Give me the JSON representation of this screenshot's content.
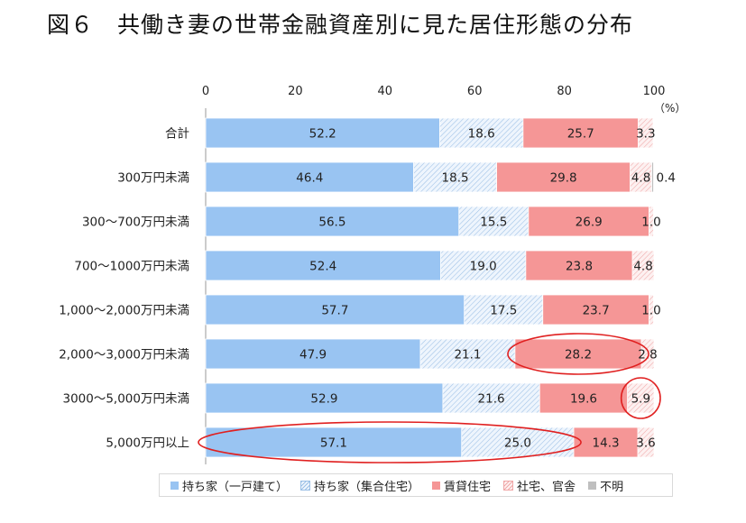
{
  "title": "図６　共働き妻の世帯金融資産別に見た居住形態の分布",
  "colors": {
    "own_house": "#99c4f2",
    "own_condo": "#dbe9f8",
    "rental": "#f59696",
    "company": "#fbe1e1",
    "unknown": "#bfbfbf"
  },
  "chart_data": {
    "type": "bar",
    "orientation": "horizontal",
    "stacked": true,
    "xlim": [
      0,
      100
    ],
    "x_ticks": [
      "0",
      "20",
      "40",
      "60",
      "80",
      "100"
    ],
    "unit_label": "（%）",
    "categories": [
      "合計",
      "300万円未満",
      "300〜700万円未満",
      "700〜1000万円未満",
      "1,000〜2,000万円未満",
      "2,000〜3,000万円未満",
      "3000〜5,000万円未満",
      "5,000万円以上"
    ],
    "series": [
      {
        "name": "持ち家（一戸建て）",
        "color_key": "own_house",
        "pattern": "solid",
        "values": [
          52.2,
          46.4,
          56.5,
          52.4,
          57.7,
          47.9,
          52.9,
          57.1
        ]
      },
      {
        "name": "持ち家（集合住宅）",
        "color_key": "own_condo",
        "pattern": "hatch-blue",
        "values": [
          18.6,
          18.5,
          15.5,
          19.0,
          17.5,
          21.1,
          21.6,
          25.0
        ]
      },
      {
        "name": "賃貸住宅",
        "color_key": "rental",
        "pattern": "solid",
        "values": [
          25.7,
          29.8,
          26.9,
          23.8,
          23.7,
          28.2,
          19.6,
          14.3
        ]
      },
      {
        "name": "社宅、官舎",
        "color_key": "company",
        "pattern": "hatch-pink",
        "values": [
          3.3,
          4.8,
          1.0,
          4.8,
          1.0,
          2.8,
          5.9,
          3.6
        ]
      },
      {
        "name": "不明",
        "color_key": "unknown",
        "pattern": "solid",
        "values": [
          0,
          0.4,
          0,
          0,
          0,
          0,
          0,
          0
        ]
      }
    ],
    "data_labels": [
      [
        "52.2",
        "18.6",
        "25.7",
        "3.3",
        ""
      ],
      [
        "46.4",
        "18.5",
        "29.8",
        "4.8",
        "0.4"
      ],
      [
        "56.5",
        "15.5",
        "26.9",
        "1.0",
        ""
      ],
      [
        "52.4",
        "19.0",
        "23.8",
        "4.8",
        ""
      ],
      [
        "57.7",
        "17.5",
        "23.7",
        "1.0",
        ""
      ],
      [
        "47.9",
        "21.1",
        "28.2",
        "2.8",
        ""
      ],
      [
        "52.9",
        "21.6",
        "19.6",
        "5.9",
        ""
      ],
      [
        "57.1",
        "25.0",
        "14.3",
        "3.6",
        ""
      ]
    ],
    "highlights": [
      {
        "row": 5,
        "series": [
          2
        ],
        "shape": "ellipse"
      },
      {
        "row": 6,
        "series": [
          3
        ],
        "shape": "ellipse"
      },
      {
        "row": 7,
        "series": [
          0,
          1
        ],
        "shape": "ellipse"
      }
    ],
    "legend": {
      "position": "bottom"
    }
  }
}
